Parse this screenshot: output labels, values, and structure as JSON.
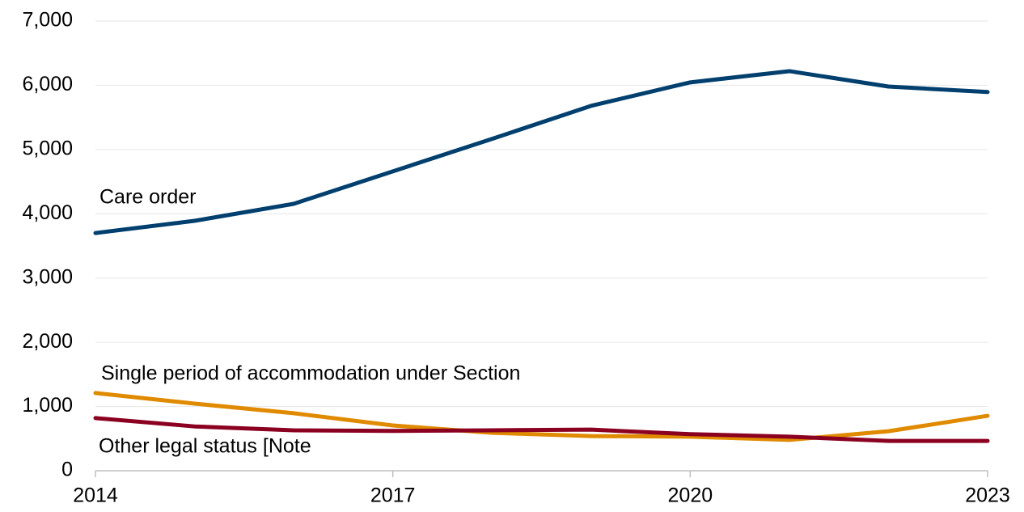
{
  "chart_data": {
    "type": "line",
    "x": [
      2014,
      2015,
      2016,
      2017,
      2018,
      2019,
      2020,
      2021,
      2022,
      2023
    ],
    "series": [
      {
        "name": "Care order",
        "color": "#003f6e",
        "values": [
          3700,
          3890,
          4155,
          4660,
          5165,
          5680,
          6045,
          6220,
          5980,
          5895
        ]
      },
      {
        "name": "Single period of accommodation under Section",
        "color": "#e08a00",
        "values": [
          1210,
          1045,
          895,
          705,
          590,
          540,
          530,
          480,
          615,
          855
        ]
      },
      {
        "name": "Other legal status [Note",
        "color": "#8b0020",
        "values": [
          820,
          690,
          630,
          620,
          630,
          640,
          570,
          530,
          465,
          465
        ]
      }
    ],
    "xlim": [
      2014,
      2023
    ],
    "xticks": [
      2014,
      2017,
      2020,
      2023
    ],
    "ylim": [
      0,
      7000
    ],
    "yticks": [
      0,
      {
        "value": 1000,
        "label": "1,000"
      },
      {
        "value": 2000,
        "label": "2,000"
      },
      {
        "value": 3000,
        "label": "3,000"
      },
      {
        "value": 4000,
        "label": "4,000"
      },
      {
        "value": 5000,
        "label": "5,000"
      },
      {
        "value": 6000,
        "label": "6,000"
      },
      {
        "value": 7000,
        "label": "7,000"
      }
    ],
    "grid": true
  }
}
